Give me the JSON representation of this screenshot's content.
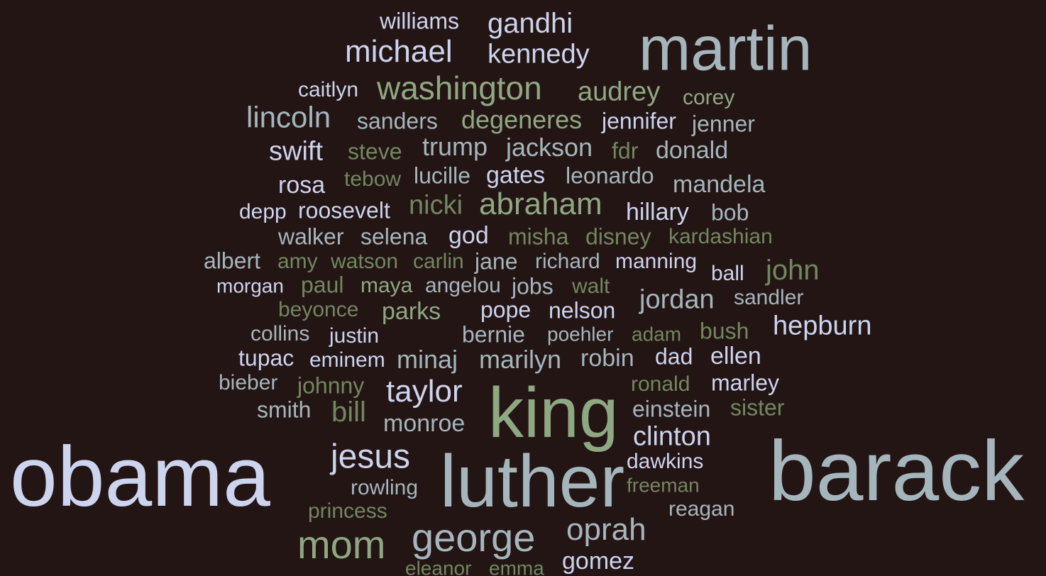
{
  "palette": {
    "background": "#241515",
    "light": "#ccd4ee",
    "slate": "#a4b6bc",
    "green": "#8ea882",
    "dark_green": "#71875f"
  },
  "words": [
    {
      "text": "williams",
      "color": "light"
    },
    {
      "text": "gandhi",
      "color": "light"
    },
    {
      "text": "michael",
      "color": "light"
    },
    {
      "text": "kennedy",
      "color": "light"
    },
    {
      "text": "martin",
      "color": "slate"
    },
    {
      "text": "caitlyn",
      "color": "light"
    },
    {
      "text": "washington",
      "color": "green"
    },
    {
      "text": "audrey",
      "color": "green"
    },
    {
      "text": "corey",
      "color": "green"
    },
    {
      "text": "lincoln",
      "color": "slate"
    },
    {
      "text": "sanders",
      "color": "slate"
    },
    {
      "text": "degeneres",
      "color": "green"
    },
    {
      "text": "jennifer",
      "color": "light"
    },
    {
      "text": "jenner",
      "color": "slate"
    },
    {
      "text": "swift",
      "color": "light"
    },
    {
      "text": "steve",
      "color": "dark_green"
    },
    {
      "text": "trump",
      "color": "slate"
    },
    {
      "text": "jackson",
      "color": "slate"
    },
    {
      "text": "fdr",
      "color": "dark_green"
    },
    {
      "text": "donald",
      "color": "slate"
    },
    {
      "text": "rosa",
      "color": "light"
    },
    {
      "text": "tebow",
      "color": "dark_green"
    },
    {
      "text": "lucille",
      "color": "slate"
    },
    {
      "text": "gates",
      "color": "light"
    },
    {
      "text": "leonardo",
      "color": "slate"
    },
    {
      "text": "mandela",
      "color": "slate"
    },
    {
      "text": "depp",
      "color": "light"
    },
    {
      "text": "roosevelt",
      "color": "light"
    },
    {
      "text": "nicki",
      "color": "dark_green"
    },
    {
      "text": "abraham",
      "color": "green"
    },
    {
      "text": "hillary",
      "color": "light"
    },
    {
      "text": "bob",
      "color": "slate"
    },
    {
      "text": "walker",
      "color": "slate"
    },
    {
      "text": "selena",
      "color": "slate"
    },
    {
      "text": "god",
      "color": "light"
    },
    {
      "text": "misha",
      "color": "dark_green"
    },
    {
      "text": "disney",
      "color": "dark_green"
    },
    {
      "text": "kardashian",
      "color": "dark_green"
    },
    {
      "text": "albert",
      "color": "slate"
    },
    {
      "text": "amy",
      "color": "dark_green"
    },
    {
      "text": "watson",
      "color": "dark_green"
    },
    {
      "text": "carlin",
      "color": "dark_green"
    },
    {
      "text": "jane",
      "color": "slate"
    },
    {
      "text": "richard",
      "color": "slate"
    },
    {
      "text": "manning",
      "color": "light"
    },
    {
      "text": "ball",
      "color": "light"
    },
    {
      "text": "john",
      "color": "dark_green"
    },
    {
      "text": "morgan",
      "color": "light"
    },
    {
      "text": "paul",
      "color": "dark_green"
    },
    {
      "text": "maya",
      "color": "green"
    },
    {
      "text": "angelou",
      "color": "slate"
    },
    {
      "text": "jobs",
      "color": "slate"
    },
    {
      "text": "walt",
      "color": "dark_green"
    },
    {
      "text": "jordan",
      "color": "slate"
    },
    {
      "text": "sandler",
      "color": "slate"
    },
    {
      "text": "beyonce",
      "color": "dark_green"
    },
    {
      "text": "parks",
      "color": "green"
    },
    {
      "text": "pope",
      "color": "light"
    },
    {
      "text": "nelson",
      "color": "light"
    },
    {
      "text": "collins",
      "color": "slate"
    },
    {
      "text": "justin",
      "color": "light"
    },
    {
      "text": "bernie",
      "color": "slate"
    },
    {
      "text": "poehler",
      "color": "slate"
    },
    {
      "text": "adam",
      "color": "dark_green"
    },
    {
      "text": "bush",
      "color": "dark_green"
    },
    {
      "text": "hepburn",
      "color": "light"
    },
    {
      "text": "tupac",
      "color": "light"
    },
    {
      "text": "eminem",
      "color": "light"
    },
    {
      "text": "minaj",
      "color": "slate"
    },
    {
      "text": "marilyn",
      "color": "slate"
    },
    {
      "text": "robin",
      "color": "slate"
    },
    {
      "text": "dad",
      "color": "light"
    },
    {
      "text": "ellen",
      "color": "light"
    },
    {
      "text": "bieber",
      "color": "slate"
    },
    {
      "text": "johnny",
      "color": "dark_green"
    },
    {
      "text": "taylor",
      "color": "light"
    },
    {
      "text": "king",
      "color": "green"
    },
    {
      "text": "ronald",
      "color": "dark_green"
    },
    {
      "text": "marley",
      "color": "light"
    },
    {
      "text": "smith",
      "color": "slate"
    },
    {
      "text": "bill",
      "color": "dark_green"
    },
    {
      "text": "einstein",
      "color": "slate"
    },
    {
      "text": "sister",
      "color": "dark_green"
    },
    {
      "text": "monroe",
      "color": "slate"
    },
    {
      "text": "clinton",
      "color": "light"
    },
    {
      "text": "obama",
      "color": "light"
    },
    {
      "text": "jesus",
      "color": "light"
    },
    {
      "text": "luther",
      "color": "slate"
    },
    {
      "text": "dawkins",
      "color": "light"
    },
    {
      "text": "barack",
      "color": "slate"
    },
    {
      "text": "rowling",
      "color": "slate"
    },
    {
      "text": "freeman",
      "color": "dark_green"
    },
    {
      "text": "princess",
      "color": "dark_green"
    },
    {
      "text": "reagan",
      "color": "slate"
    },
    {
      "text": "mom",
      "color": "green"
    },
    {
      "text": "george",
      "color": "slate"
    },
    {
      "text": "oprah",
      "color": "slate"
    },
    {
      "text": "eleanor",
      "color": "dark_green"
    },
    {
      "text": "emma",
      "color": "dark_green"
    },
    {
      "text": "gomez",
      "color": "light"
    }
  ]
}
